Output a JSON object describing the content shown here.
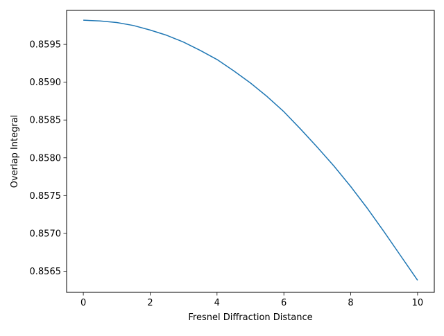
{
  "chart_data": {
    "type": "line",
    "title": "",
    "xlabel": "Fresnel Diffraction Distance",
    "ylabel": "Overlap Integral",
    "xlim": [
      -0.5,
      10.5
    ],
    "ylim": [
      0.85622,
      0.85995
    ],
    "xticks": [
      0,
      2,
      4,
      6,
      8,
      10
    ],
    "xtick_labels": [
      "0",
      "2",
      "4",
      "6",
      "8",
      "10"
    ],
    "yticks": [
      0.8565,
      0.857,
      0.8575,
      0.858,
      0.8585,
      0.859,
      0.8595
    ],
    "ytick_labels": [
      "0.8565",
      "0.8570",
      "0.8575",
      "0.8580",
      "0.8585",
      "0.8590",
      "0.8595"
    ],
    "grid": false,
    "legend": "none",
    "series": [
      {
        "color": "#1f77b4",
        "x": [
          0,
          0.5,
          1,
          1.5,
          2,
          2.5,
          3,
          3.5,
          4,
          4.5,
          5,
          5.5,
          6,
          6.5,
          7,
          7.5,
          8,
          8.5,
          9,
          9.5,
          10
        ],
        "y": [
          0.85982,
          0.85981,
          0.85979,
          0.85975,
          0.85969,
          0.85962,
          0.85953,
          0.85942,
          0.8593,
          0.85915,
          0.85899,
          0.85881,
          0.85861,
          0.85838,
          0.85814,
          0.85789,
          0.85762,
          0.85733,
          0.85702,
          0.8567,
          0.85638
        ]
      }
    ]
  }
}
